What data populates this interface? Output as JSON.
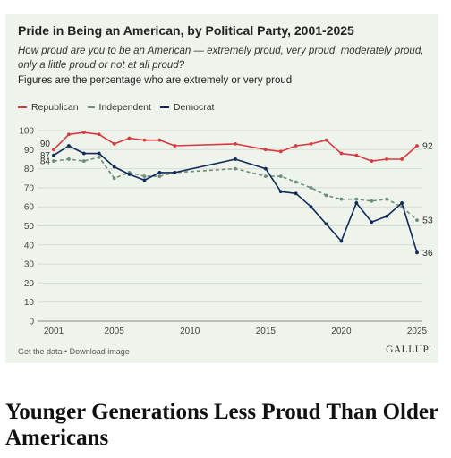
{
  "chart_card": {
    "title": "Pride in Being an American, by Political Party, 2001-2025",
    "subtitle": "How proud are you to be an American — extremely proud, very proud, moderately proud, only a little proud or not at all proud?",
    "note": "Figures are the percentage who are extremely or very proud",
    "footer_links": "Get the data • Download image",
    "brand": "GALLUP'"
  },
  "headline": "Younger Generations Less Proud Than Older Americans",
  "chart_data": {
    "type": "line",
    "xlabel": "",
    "ylabel": "",
    "xlim": [
      2001,
      2025
    ],
    "ylim": [
      0,
      100
    ],
    "y_ticks": [
      0,
      10,
      20,
      30,
      40,
      50,
      60,
      70,
      80,
      90,
      100
    ],
    "x_ticks": [
      2001,
      2005,
      2010,
      2015,
      2020,
      2025
    ],
    "grid": true,
    "legend_position": "top-left",
    "series": [
      {
        "name": "Republican",
        "color": "#d93a3f",
        "style": "solid",
        "points": [
          [
            2001,
            90
          ],
          [
            2002,
            98
          ],
          [
            2003,
            99
          ],
          [
            2004,
            98
          ],
          [
            2005,
            93
          ],
          [
            2006,
            96
          ],
          [
            2007,
            95
          ],
          [
            2008,
            95
          ],
          [
            2009,
            92
          ],
          [
            2013,
            93
          ],
          [
            2015,
            90
          ],
          [
            2016,
            89
          ],
          [
            2017,
            92
          ],
          [
            2018,
            93
          ],
          [
            2019,
            95
          ],
          [
            2020,
            88
          ],
          [
            2021,
            87
          ],
          [
            2022,
            84
          ],
          [
            2023,
            85
          ],
          [
            2024,
            85
          ],
          [
            2025,
            92
          ]
        ],
        "start_label": "90",
        "end_label": "92"
      },
      {
        "name": "Independent",
        "color": "#6c8d7a",
        "style": "dashed",
        "points": [
          [
            2001,
            84
          ],
          [
            2002,
            85
          ],
          [
            2003,
            84
          ],
          [
            2004,
            86
          ],
          [
            2005,
            75
          ],
          [
            2006,
            78
          ],
          [
            2007,
            76
          ],
          [
            2008,
            76
          ],
          [
            2009,
            78
          ],
          [
            2013,
            80
          ],
          [
            2015,
            76
          ],
          [
            2016,
            76
          ],
          [
            2017,
            73
          ],
          [
            2018,
            70
          ],
          [
            2019,
            66
          ],
          [
            2020,
            64
          ],
          [
            2021,
            64
          ],
          [
            2022,
            63
          ],
          [
            2023,
            64
          ],
          [
            2024,
            60
          ],
          [
            2025,
            53
          ]
        ],
        "start_label": "84",
        "end_label": "53"
      },
      {
        "name": "Democrat",
        "color": "#0f2a56",
        "style": "solid",
        "points": [
          [
            2001,
            87
          ],
          [
            2002,
            92
          ],
          [
            2003,
            88
          ],
          [
            2004,
            88
          ],
          [
            2005,
            81
          ],
          [
            2006,
            77
          ],
          [
            2007,
            74
          ],
          [
            2008,
            78
          ],
          [
            2009,
            78
          ],
          [
            2013,
            85
          ],
          [
            2015,
            80
          ],
          [
            2016,
            68
          ],
          [
            2017,
            67
          ],
          [
            2018,
            60
          ],
          [
            2019,
            51
          ],
          [
            2020,
            42
          ],
          [
            2021,
            62
          ],
          [
            2022,
            52
          ],
          [
            2023,
            55
          ],
          [
            2024,
            62
          ],
          [
            2025,
            36
          ]
        ],
        "start_label": "87",
        "end_label": "36"
      }
    ]
  }
}
